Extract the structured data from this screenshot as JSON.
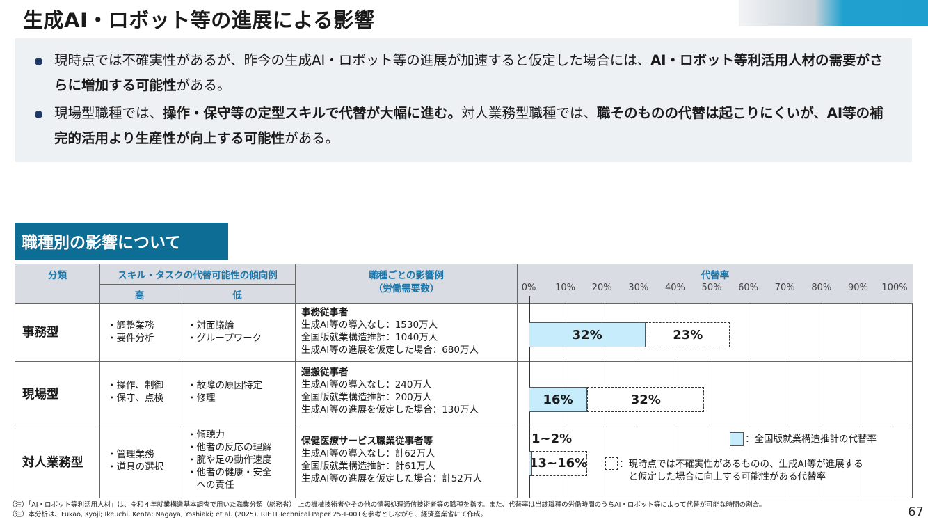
{
  "title": "生成AI・ロボット等の進展による影響",
  "summary": {
    "bullet1": [
      "現時点では不確実性があるが、昨今の生成AI・ロボット等の進展が加速すると仮定した場合には、",
      "AI・ロボット等利活用人材の需要がさらに増加する可能性",
      "がある。"
    ],
    "bullet2": [
      "現場型職種では、",
      "操作・保守等の定型スキルで代替が大幅に進む。",
      "対人業務型職種では、",
      "職そのものの代替は起こりにくいが、AI等の補完的活用より生産性が向上する可能性",
      "がある。"
    ]
  },
  "section_title": "職種別の影響について",
  "table": {
    "headers": {
      "category": "分類",
      "skill": "スキル・タスクの代替可能性の傾向例",
      "high": "高",
      "low": "低",
      "impact": "職種ごとの影響例\n（労働需要数）",
      "rate": "代替率"
    },
    "ticks": [
      "0%",
      "10%",
      "20%",
      "30%",
      "40%",
      "50%",
      "60%",
      "70%",
      "80%",
      "90%",
      "100%"
    ],
    "rows": [
      {
        "category": "事務型",
        "high": "・調整業務\n・要件分析",
        "low": "・対面議論\n・グループワーク",
        "job": "事務従事者",
        "lines": "生成AI等の導入なし：1530万人\n全国版就業構造推計：1040万人\n生成AI等の進展を仮定した場合：680万人"
      },
      {
        "category": "現場型",
        "high": "・操作、制御\n・保守、点検",
        "low": "・故障の原因特定\n・修理",
        "job": "運搬従事者",
        "lines": "生成AI等の導入なし：240万人\n全国版就業構造推計：200万人\n生成AI等の進展を仮定した場合：130万人"
      },
      {
        "category": "対人業務型",
        "high": "・管理業務\n・道具の選択",
        "low": "・傾聴力\n・他者の反応の理解\n・腕や足の動作速度\n・他者の健康・安全\n　への責任",
        "job": "保健医療サービス職業従事者等",
        "lines": "生成AI等の導入なし：計62万人\n全国版就業構造推計：計61万人\n生成AI等の進展を仮定した場合：計52万人"
      }
    ],
    "legend_solid": "：全国版就業構造推計の代替率",
    "legend_dash": "：現時点では不確実性があるものの、生成AI等が進展する\n　と仮定した場合に向上する可能性がある代替率"
  },
  "chart_data": {
    "type": "bar",
    "categories": [
      "事務型",
      "現場型",
      "対人業務型"
    ],
    "series": [
      {
        "name": "全国版就業構造推計の代替率",
        "values": [
          32,
          16,
          1
        ]
      },
      {
        "name": "現時点では不確実性があるものの、生成AI等が進展すると仮定した場合に向上する可能性がある代替率",
        "values": [
          23,
          32,
          15
        ]
      }
    ],
    "labels_solid": [
      "32%",
      "16%",
      "1~2%"
    ],
    "labels_dash": [
      "23%",
      "32%",
      "13~16%"
    ],
    "title": "代替率",
    "xlim": [
      0,
      100
    ]
  },
  "notes": [
    "（注）「AI・ロボット等利活用人材」は、令和４年就業構造基本調査で用いた職業分類（総務省） 上の機械技術者やその他の情報処理通信技術者等の職種を指す。また、代替率は当該職種の労働時間のうちAI・ロボット等によって代替が可能な時間の割合。",
    "（注）本分析は、Fukao, Kyoji; Ikeuchi, Kenta; Nagaya, Yoshiaki; et al. (2025). RIETI Technical Paper 25-T-001を参考としながら、経済産業省にて作成。"
  ],
  "page_number": "67"
}
